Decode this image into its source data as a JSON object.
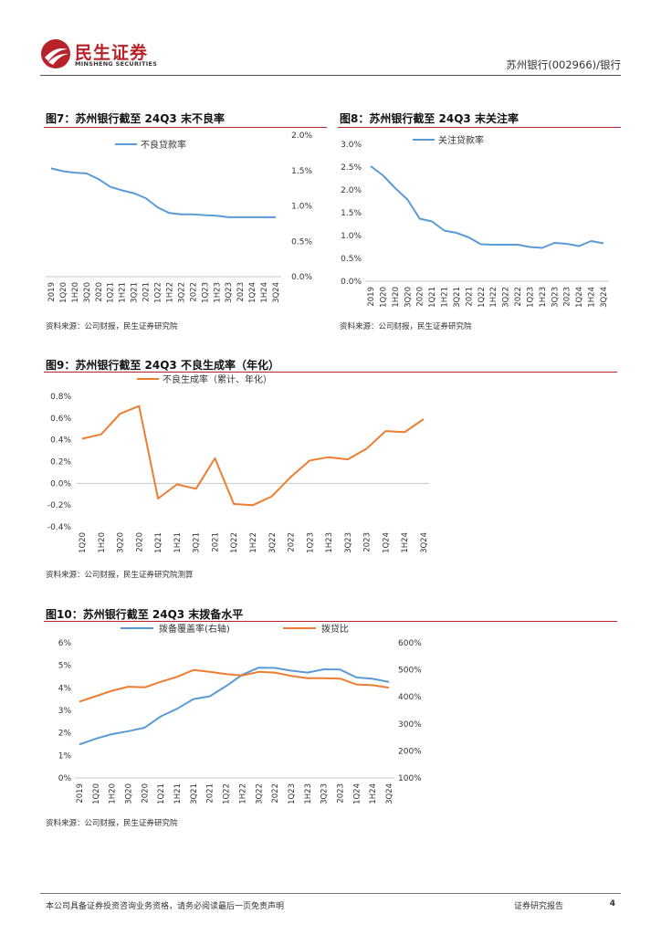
{
  "header": {
    "logo_cn": "民生证券",
    "logo_en": "MINSHENG SECURITIES",
    "doc_ref": "苏州银行(002966)/银行"
  },
  "colors": {
    "brand_red": "#b8222a",
    "blue": "#5b9bd5",
    "orange": "#ed7d31"
  },
  "fig7": {
    "title": "图7：苏州银行截至 24Q3 末不良率",
    "source": "资料来源：公司财报，民生证券研究院"
  },
  "fig8": {
    "title": "图8：苏州银行截至 24Q3 末关注率",
    "source": "资料来源：公司财报，民生证券研究院"
  },
  "fig9": {
    "title": "图9：苏州银行截至 24Q3 不良生成率（年化）",
    "source": "资料来源：公司财报，民生证券研究院测算"
  },
  "fig10": {
    "title": "图10：苏州银行截至 24Q3 末拨备水平",
    "source": "资料来源：公司财报，民生证券研究院"
  },
  "chart_data": [
    {
      "id": "npl",
      "type": "line",
      "categories": [
        "2019",
        "1Q20",
        "1H20",
        "3Q20",
        "2020",
        "1Q21",
        "1H21",
        "3Q21",
        "2021",
        "1Q22",
        "1H22",
        "3Q22",
        "2022",
        "1Q23",
        "1H23",
        "3Q23",
        "2023",
        "1Q24",
        "1H24",
        "3Q24"
      ],
      "series": [
        {
          "name": "不良贷款率",
          "values": [
            1.53,
            1.49,
            1.47,
            1.46,
            1.38,
            1.27,
            1.22,
            1.18,
            1.11,
            0.98,
            0.9,
            0.88,
            0.88,
            0.87,
            0.86,
            0.84,
            0.84,
            0.84,
            0.84,
            0.84
          ]
        }
      ],
      "ylim": [
        0,
        2.0
      ],
      "yticks": [
        "0.0%",
        "0.5%",
        "1.0%",
        "1.5%",
        "2.0%"
      ],
      "y_axis": "right",
      "legend": "top-left"
    },
    {
      "id": "special_mention",
      "type": "line",
      "categories": [
        "2019",
        "1Q20",
        "1H20",
        "3Q20",
        "2020",
        "1Q21",
        "1H21",
        "3Q21",
        "2021",
        "1Q22",
        "1H22",
        "3Q22",
        "2022",
        "1Q23",
        "1H23",
        "3Q23",
        "2023",
        "1Q24",
        "1H24",
        "3Q24"
      ],
      "series": [
        {
          "name": "关注贷款率",
          "values": [
            2.52,
            2.32,
            2.04,
            1.79,
            1.37,
            1.31,
            1.11,
            1.06,
            0.96,
            0.81,
            0.8,
            0.8,
            0.8,
            0.75,
            0.73,
            0.84,
            0.82,
            0.77,
            0.88,
            0.83
          ]
        }
      ],
      "ylim": [
        0,
        3.0
      ],
      "yticks": [
        "0.0%",
        "0.5%",
        "1.0%",
        "1.5%",
        "2.0%",
        "2.5%",
        "3.0%"
      ],
      "y_axis": "left",
      "legend": "top-center"
    },
    {
      "id": "npl_formation",
      "type": "line",
      "categories": [
        "1Q20",
        "1H20",
        "3Q20",
        "2020",
        "1Q21",
        "1H21",
        "3Q21",
        "2021",
        "1Q22",
        "1H22",
        "3Q22",
        "2022",
        "1Q23",
        "1H23",
        "3Q23",
        "2023",
        "1Q24",
        "1H24",
        "3Q24"
      ],
      "series": [
        {
          "name": "不良生成率（累计、年化）",
          "values": [
            0.41,
            0.45,
            0.64,
            0.71,
            -0.14,
            -0.01,
            -0.05,
            0.23,
            -0.19,
            -0.2,
            -0.12,
            0.06,
            0.21,
            0.24,
            0.22,
            0.32,
            0.48,
            0.47,
            0.59
          ]
        }
      ],
      "ylim": [
        -0.4,
        0.8
      ],
      "yticks": [
        "-0.4%",
        "-0.2%",
        "0.0%",
        "0.2%",
        "0.4%",
        "0.6%",
        "0.8%"
      ],
      "legend": "top-center"
    },
    {
      "id": "provisions",
      "type": "line",
      "categories": [
        "2019",
        "1Q20",
        "1H20",
        "3Q20",
        "2020",
        "1Q21",
        "1H21",
        "3Q21",
        "2021",
        "1Q22",
        "1H22",
        "3Q22",
        "2022",
        "1Q23",
        "1H23",
        "3Q23",
        "2023",
        "1Q24",
        "1H24",
        "3Q24"
      ],
      "series": [
        {
          "name": "拨备覆盖率(右轴)",
          "axis": "right",
          "values": [
            224,
            245,
            262,
            273,
            286,
            328,
            356,
            392,
            402,
            440,
            482,
            508,
            507,
            497,
            490,
            502,
            501,
            472,
            467,
            455
          ]
        },
        {
          "name": "拨贷比",
          "axis": "left",
          "values": [
            3.39,
            3.63,
            3.87,
            4.05,
            4.02,
            4.27,
            4.49,
            4.79,
            4.71,
            4.61,
            4.55,
            4.71,
            4.68,
            4.53,
            4.43,
            4.43,
            4.41,
            4.15,
            4.12,
            4.01
          ]
        }
      ],
      "ylim_left": [
        0,
        6
      ],
      "ylim_right": [
        100,
        600
      ],
      "yticks_left": [
        "0%",
        "1%",
        "2%",
        "3%",
        "4%",
        "5%",
        "6%"
      ],
      "yticks_right": [
        "100%",
        "200%",
        "300%",
        "400%",
        "500%",
        "600%"
      ],
      "legend": "top"
    }
  ],
  "footer": {
    "disclaimer": "本公司具备证券投资咨询业务资格，请务必阅读最后一页免责声明",
    "report_type": "证券研究报告",
    "page": "4"
  }
}
